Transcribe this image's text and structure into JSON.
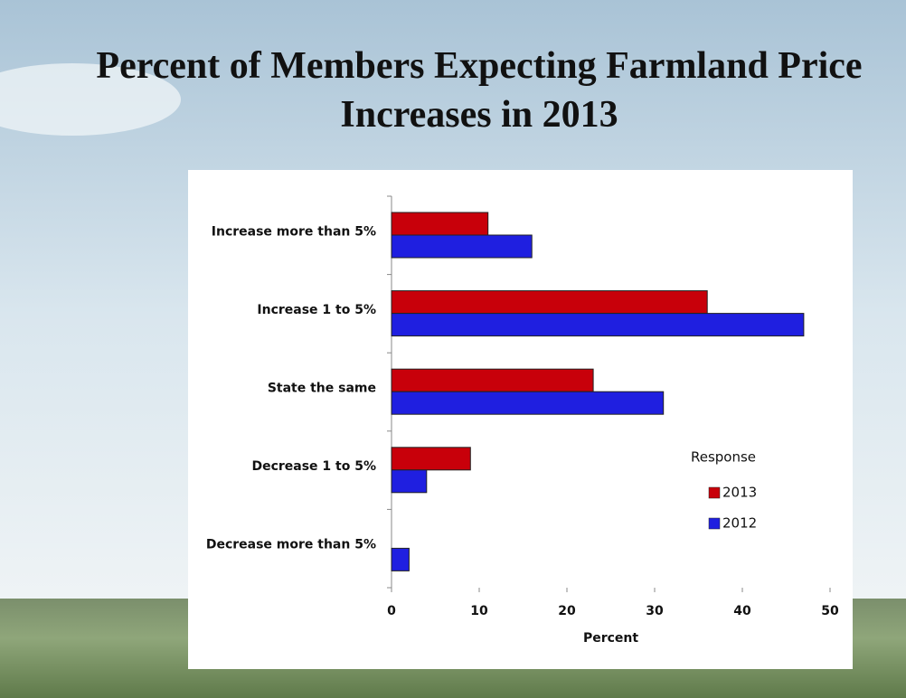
{
  "chart_data": {
    "type": "hbar",
    "title": "Percent of Members Expecting Farmland Price Increases in 2013",
    "categories": [
      "Increase more than 5%",
      "Increase 1 to 5%",
      "State the same",
      "Decrease 1 to 5%",
      "Decrease more than 5%"
    ],
    "series": [
      {
        "name": "2013",
        "color": "#c8000a",
        "values": [
          11,
          36,
          23,
          9,
          0
        ]
      },
      {
        "name": "2012",
        "color": "#1f1fe0",
        "values": [
          16,
          47,
          31,
          4,
          2
        ]
      }
    ],
    "xlabel": "Percent",
    "legend_title": "Response",
    "legend": "lower right",
    "xlim": [
      0,
      50
    ],
    "xticks": [
      0,
      10,
      20,
      30,
      40,
      50
    ]
  }
}
